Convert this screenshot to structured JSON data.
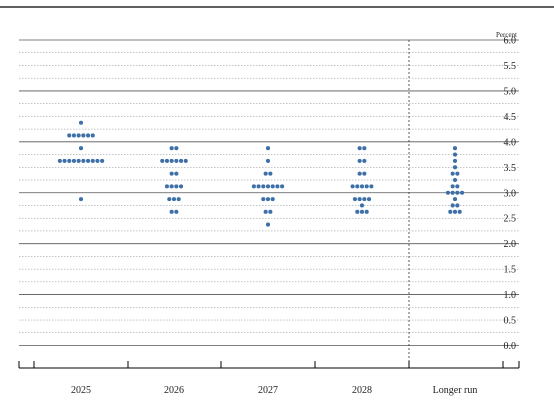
{
  "chart_data": {
    "type": "scatter",
    "title": "",
    "ylabel": "Percent",
    "xlabel": "",
    "ylim": [
      0,
      6.0
    ],
    "ytick_labels": [
      "0.0",
      "0.5",
      "1.0",
      "1.5",
      "2.0",
      "2.5",
      "3.0",
      "3.5",
      "4.0",
      "4.5",
      "5.0",
      "5.5",
      "6.0"
    ],
    "categories": [
      "2025",
      "2026",
      "2027",
      "2028",
      "Longer run"
    ],
    "grid": "horizontal dotted at 0.25 steps; solid lines at whole numbers",
    "dot_color": "#3d6fa8",
    "series": [
      {
        "category": "2025",
        "points": [
          {
            "y": 4.375,
            "count": 1
          },
          {
            "y": 4.125,
            "count": 6
          },
          {
            "y": 3.875,
            "count": 1
          },
          {
            "y": 3.625,
            "count": 10
          },
          {
            "y": 2.875,
            "count": 1
          }
        ]
      },
      {
        "category": "2026",
        "points": [
          {
            "y": 3.875,
            "count": 2
          },
          {
            "y": 3.625,
            "count": 6
          },
          {
            "y": 3.375,
            "count": 2
          },
          {
            "y": 3.125,
            "count": 4
          },
          {
            "y": 2.875,
            "count": 3
          },
          {
            "y": 2.625,
            "count": 2
          }
        ]
      },
      {
        "category": "2027",
        "points": [
          {
            "y": 3.875,
            "count": 1
          },
          {
            "y": 3.625,
            "count": 1
          },
          {
            "y": 3.375,
            "count": 2
          },
          {
            "y": 3.125,
            "count": 7
          },
          {
            "y": 2.875,
            "count": 3
          },
          {
            "y": 2.625,
            "count": 2
          },
          {
            "y": 2.375,
            "count": 1
          }
        ]
      },
      {
        "category": "2028",
        "points": [
          {
            "y": 3.875,
            "count": 2
          },
          {
            "y": 3.625,
            "count": 2
          },
          {
            "y": 3.375,
            "count": 2
          },
          {
            "y": 3.125,
            "count": 5
          },
          {
            "y": 2.875,
            "count": 4
          },
          {
            "y": 2.75,
            "count": 1
          },
          {
            "y": 2.625,
            "count": 3
          }
        ]
      },
      {
        "category": "Longer run",
        "points": [
          {
            "y": 3.875,
            "count": 1
          },
          {
            "y": 3.75,
            "count": 1
          },
          {
            "y": 3.625,
            "count": 1
          },
          {
            "y": 3.5,
            "count": 1
          },
          {
            "y": 3.375,
            "count": 2
          },
          {
            "y": 3.25,
            "count": 1
          },
          {
            "y": 3.125,
            "count": 2
          },
          {
            "y": 3.0,
            "count": 4
          },
          {
            "y": 2.875,
            "count": 1
          },
          {
            "y": 2.75,
            "count": 2
          },
          {
            "y": 2.625,
            "count": 3
          }
        ]
      }
    ]
  }
}
